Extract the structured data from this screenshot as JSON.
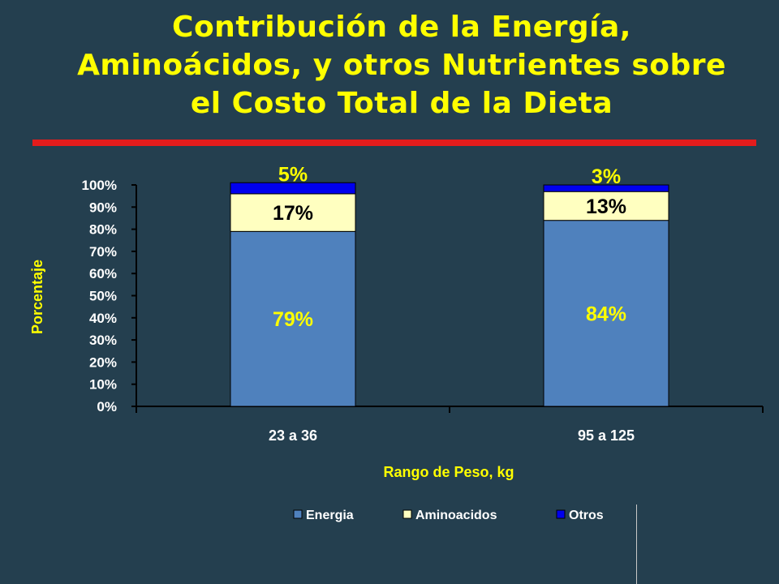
{
  "title": {
    "line1": "Contribución de la Energía,",
    "line2": "Aminoácidos, y otros Nutrientes sobre",
    "line3": "el Costo Total de la Dieta"
  },
  "colors": {
    "background": "#243f4f",
    "title": "#ffff00",
    "rule": "#e31c1c",
    "Energia": "#4f81bd",
    "Aminoacidos": "#ffffc0",
    "Otros": "#0000ee"
  },
  "chart_data": {
    "type": "bar",
    "stacked": true,
    "categories": [
      "23 a 36",
      "95 a 125"
    ],
    "series": [
      {
        "name": "Energia",
        "values": [
          79,
          84
        ],
        "labels": [
          "79%",
          "84%"
        ]
      },
      {
        "name": "Aminoacidos",
        "values": [
          17,
          13
        ],
        "labels": [
          "17%",
          "13%"
        ]
      },
      {
        "name": "Otros",
        "values": [
          5,
          3
        ],
        "labels": [
          "5%",
          "3%"
        ]
      }
    ],
    "xlabel": "Rango de Peso, kg",
    "ylabel": "Porcentaje",
    "ylim": [
      0,
      100
    ],
    "yticks": [
      "0%",
      "10%",
      "20%",
      "30%",
      "40%",
      "50%",
      "60%",
      "70%",
      "80%",
      "90%",
      "100%"
    ],
    "grid": false,
    "legend": "bottom"
  }
}
